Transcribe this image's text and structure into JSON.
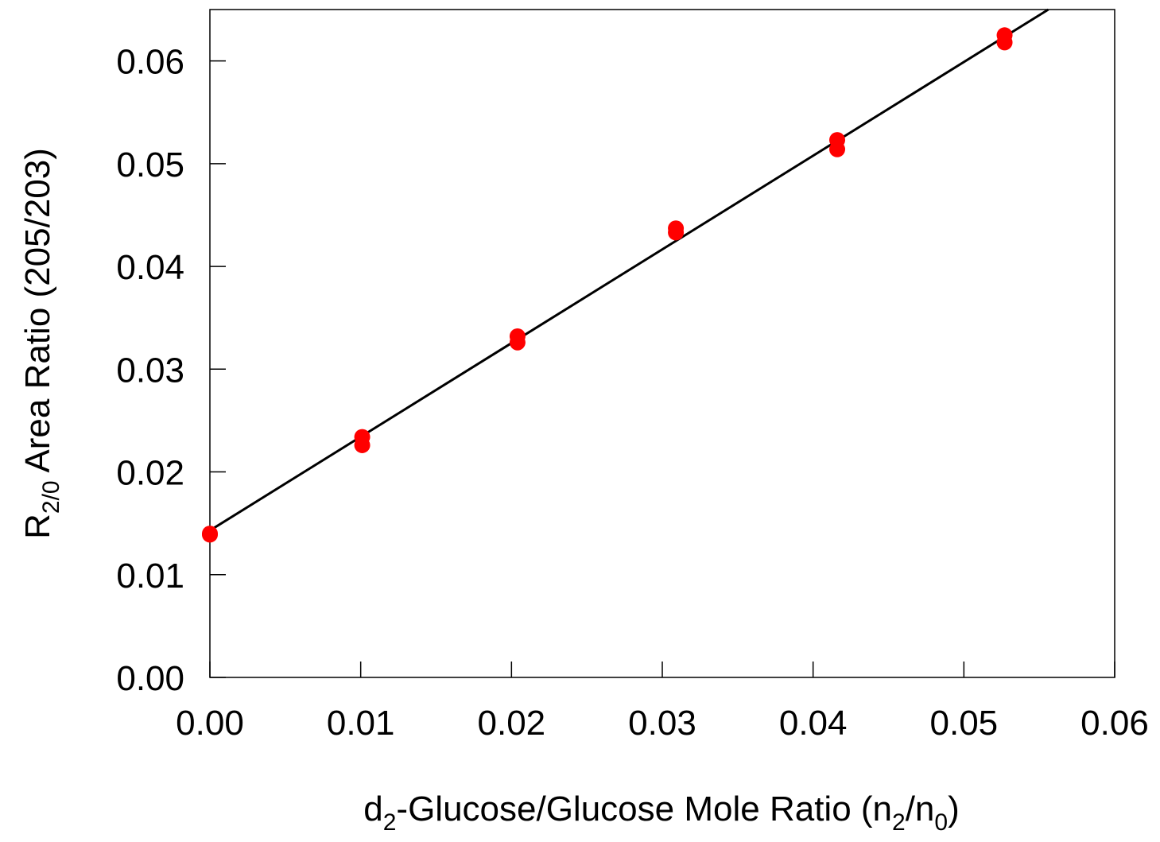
{
  "chart_data": {
    "type": "scatter",
    "xlabel_parts": [
      {
        "text": "d"
      },
      {
        "text": "2",
        "sub": true
      },
      {
        "text": "-Glucose/Glucose Mole Ratio (n"
      },
      {
        "text": "2",
        "sub": true
      },
      {
        "text": "/n"
      },
      {
        "text": "0",
        "sub": true
      },
      {
        "text": ")"
      }
    ],
    "ylabel_parts": [
      {
        "text": "R"
      },
      {
        "text": "2/0",
        "sub": true
      },
      {
        "text": " Area Ratio (205/203)"
      }
    ],
    "xlim": [
      0,
      0.06
    ],
    "ylim": [
      0,
      0.065
    ],
    "xticks": [
      {
        "value": 0,
        "label": "0.00"
      },
      {
        "value": 0.01,
        "label": "0.01"
      },
      {
        "value": 0.02,
        "label": "0.02"
      },
      {
        "value": 0.03,
        "label": "0.03"
      },
      {
        "value": 0.04,
        "label": "0.04"
      },
      {
        "value": 0.05,
        "label": "0.05"
      },
      {
        "value": 0.06,
        "label": "0.06"
      }
    ],
    "yticks": [
      {
        "value": 0,
        "label": "0.00"
      },
      {
        "value": 0.01,
        "label": "0.01"
      },
      {
        "value": 0.02,
        "label": "0.02"
      },
      {
        "value": 0.03,
        "label": "0.03"
      },
      {
        "value": 0.04,
        "label": "0.04"
      },
      {
        "value": 0.05,
        "label": "0.05"
      },
      {
        "value": 0.06,
        "label": "0.06"
      }
    ],
    "series": [
      {
        "color": "#ff0000",
        "x": [
          0,
          0,
          0.0101,
          0.0101,
          0.0204,
          0.0204,
          0.0309,
          0.0309,
          0.0416,
          0.0416,
          0.0527,
          0.0527
        ],
        "values": [
          0.014,
          0.0139,
          0.0234,
          0.0226,
          0.0332,
          0.0326,
          0.0437,
          0.0433,
          0.0523,
          0.0514,
          0.0625,
          0.0618
        ]
      }
    ],
    "fit": {
      "color": "#000000",
      "x": [
        0,
        0.0556
      ],
      "values": [
        0.0143,
        0.065
      ]
    }
  }
}
